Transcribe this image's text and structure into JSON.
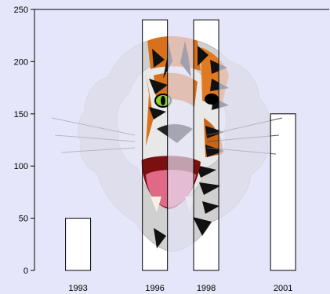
{
  "chart_data": {
    "type": "bar",
    "title": "",
    "xlabel": "",
    "ylabel": "",
    "categories": [
      "1993",
      "1996",
      "1998",
      "2001"
    ],
    "x": [
      1993,
      1996,
      1998,
      2001
    ],
    "values": [
      50,
      240,
      240,
      150
    ],
    "xlim": [
      1991.3,
      2002.8
    ],
    "ylim": [
      0,
      250
    ],
    "yticks": [
      "0",
      "50",
      "100",
      "150",
      "200",
      "250"
    ],
    "grid": false,
    "legend": "none",
    "bar_fill": "image",
    "background_image": "tiger-head-illustration",
    "colors": {
      "background": "#e6e6fa",
      "bar_edge": "#000000",
      "axis": "#000000"
    }
  }
}
